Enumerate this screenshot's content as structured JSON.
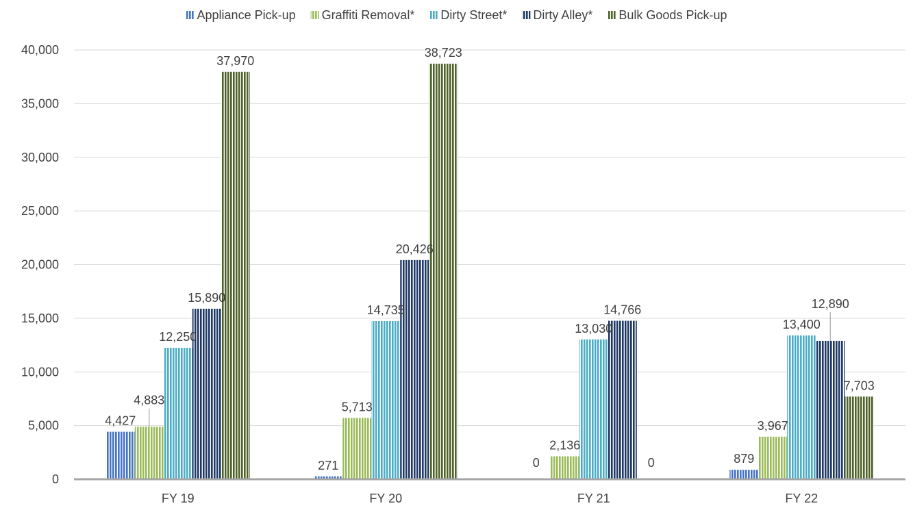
{
  "chart_data": {
    "type": "bar",
    "categories": [
      "FY 19",
      "FY 20",
      "FY 21",
      "FY 22"
    ],
    "series": [
      {
        "name": "Appliance Pick-up",
        "values": [
          4427,
          271,
          0,
          879
        ],
        "labels": [
          "4,427",
          "271",
          "0",
          "879"
        ],
        "color": "#4472c4"
      },
      {
        "name": "Graffiti Removal*",
        "values": [
          4883,
          5713,
          2136,
          3967
        ],
        "labels": [
          "4,883",
          "5,713",
          "2,136",
          "3,967"
        ],
        "color": "#9bbb59"
      },
      {
        "name": "Dirty Street*",
        "values": [
          12250,
          14735,
          13030,
          13400
        ],
        "labels": [
          "12,250",
          "14,735",
          "13,030",
          "13,400"
        ],
        "color": "#4bacc6"
      },
      {
        "name": "Dirty Alley*",
        "values": [
          15890,
          20426,
          14766,
          12890
        ],
        "labels": [
          "15,890",
          "20,426",
          "14,766",
          "12,890"
        ],
        "color": "#1f3864"
      },
      {
        "name": "Bulk Goods Pick-up",
        "values": [
          37970,
          38723,
          0,
          7703
        ],
        "labels": [
          "37,970",
          "38,723",
          "0",
          "7,703"
        ],
        "color": "#4f6228"
      }
    ],
    "ylim": [
      0,
      40000
    ],
    "yticks": [
      0,
      5000,
      10000,
      15000,
      20000,
      25000,
      30000,
      35000,
      40000
    ],
    "ytick_labels": [
      "0",
      "5,000",
      "10,000",
      "15,000",
      "20,000",
      "25,000",
      "30,000",
      "35,000",
      "40,000"
    ],
    "title": "",
    "xlabel": "",
    "ylabel": "",
    "legend": "top",
    "grid": true,
    "bar_pattern": "vertical-stripes"
  }
}
